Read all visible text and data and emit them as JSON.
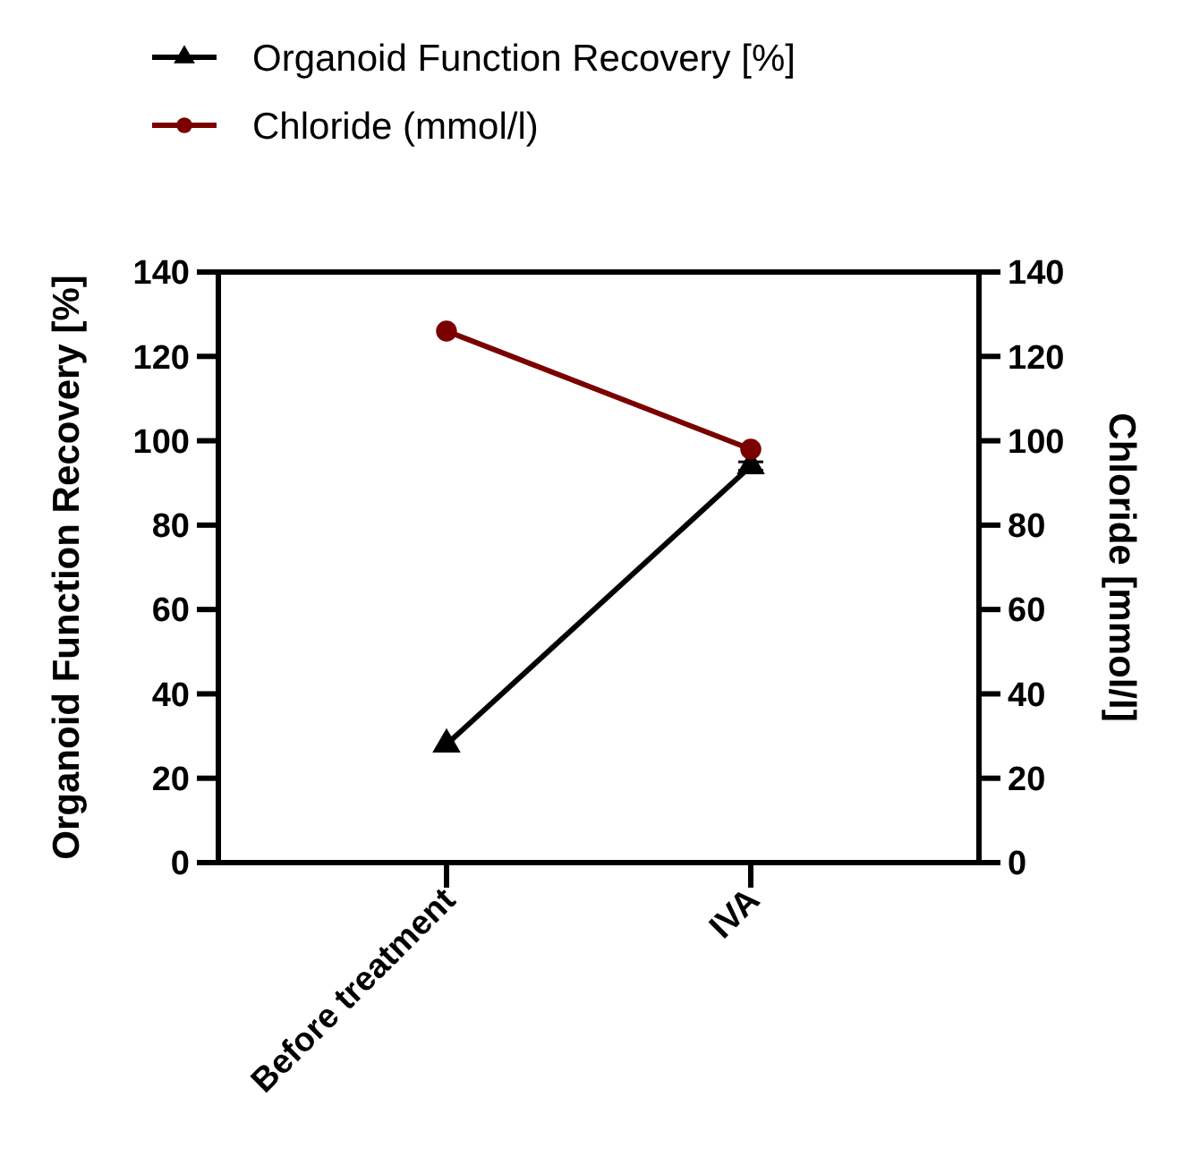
{
  "chart_data": {
    "type": "line",
    "categories": [
      "Before treatment",
      "IVA"
    ],
    "ylabel": "Organoid Function Recovery [%]",
    "y2label": "Chloride [mmol/l]",
    "ylim": [
      0,
      140
    ],
    "yticks": [
      0,
      20,
      40,
      60,
      80,
      100,
      120,
      140
    ],
    "y2lim": [
      0,
      140
    ],
    "y2ticks": [
      0,
      20,
      40,
      60,
      80,
      100,
      120,
      140
    ],
    "legend": "top",
    "grid": false,
    "line_style": "solid",
    "series": [
      {
        "name": "Organoid Function Recovery [%]",
        "color": "#000000",
        "values": [
          28,
          94
        ],
        "errors": [
          null,
          1
        ],
        "marker": "triangle"
      },
      {
        "name": "Chloride (mmol/l)",
        "color": "#7b0000",
        "values": [
          126,
          98
        ],
        "axis": "y2",
        "marker": "circle"
      }
    ]
  }
}
